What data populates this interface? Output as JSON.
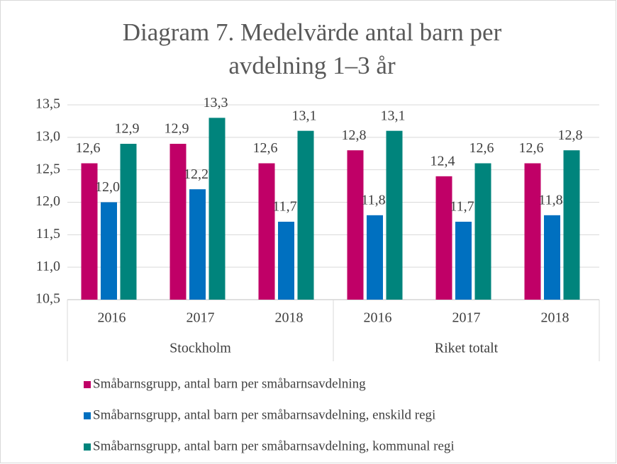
{
  "chart_data": {
    "type": "bar",
    "title": "Diagram 7. Medelvärde antal barn per avdelning 1–3 år",
    "categories": [
      "2016",
      "2017",
      "2018",
      "2016",
      "2017",
      "2018"
    ],
    "groups": [
      "Stockholm",
      "Riket totalt"
    ],
    "series": [
      {
        "name": "Småbarnsgrupp, antal barn per småbarnsavdelning",
        "color": "#c00067",
        "values": [
          12.6,
          12.9,
          12.6,
          12.8,
          12.4,
          12.6
        ],
        "value_labels": [
          "12,6",
          "12,9",
          "12,6",
          "12,8",
          "12,4",
          "12,6"
        ]
      },
      {
        "name": "Småbarnsgrupp, antal barn per småbarnsavdelning, enskild regi",
        "color": "#0070c0",
        "values": [
          12.0,
          12.2,
          11.7,
          11.8,
          11.7,
          11.8
        ],
        "value_labels": [
          "12,0",
          "12,2",
          "11,7",
          "11,8",
          "11,7",
          "11,8"
        ]
      },
      {
        "name": "Småbarnsgrupp, antal barn per småbarnsavdelning, kommunal regi",
        "color": "#00847c",
        "values": [
          12.9,
          13.3,
          13.1,
          13.1,
          12.6,
          12.8
        ],
        "value_labels": [
          "12,9",
          "13,3",
          "13,1",
          "13,1",
          "12,6",
          "12,8"
        ]
      }
    ],
    "ylim": [
      10.5,
      13.5
    ],
    "yticks": [
      {
        "value": 10.5,
        "label": "10,5"
      },
      {
        "value": 11.0,
        "label": "11,0"
      },
      {
        "value": 11.5,
        "label": "11,5"
      },
      {
        "value": 12.0,
        "label": "12,0"
      },
      {
        "value": 12.5,
        "label": "12,5"
      },
      {
        "value": 13.0,
        "label": "13,0"
      },
      {
        "value": 13.5,
        "label": "13,5"
      }
    ],
    "grid": true
  }
}
